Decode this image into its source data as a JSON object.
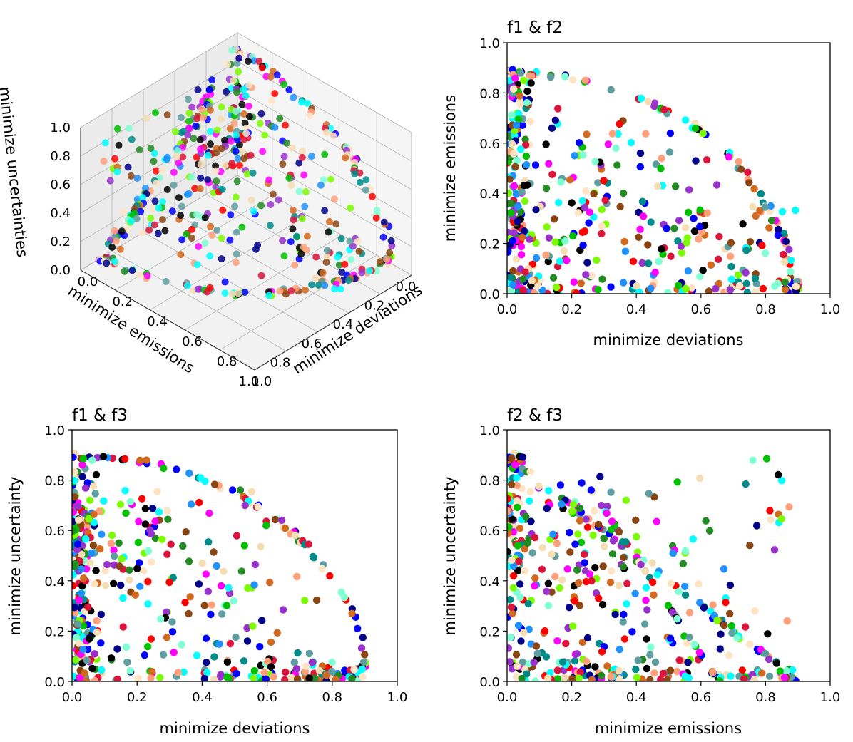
{
  "chart_data": [
    {
      "id": "scatter3d",
      "type": "scatter",
      "title": "",
      "xlabel": "minimize deviations",
      "ylabel": "minimize emissions",
      "zlabel": "minimize uncertainties",
      "xlim": [
        0.0,
        1.0
      ],
      "ylim": [
        0.0,
        1.0
      ],
      "zlim": [
        0.0,
        1.0
      ],
      "xticks": [
        "0.0",
        "0.2",
        "0.4",
        "0.6",
        "0.8",
        "1.0"
      ],
      "yticks": [
        "0.0",
        "0.2",
        "0.4",
        "0.6",
        "0.8",
        "1.0"
      ],
      "zticks": [
        "0.0",
        "0.2",
        "0.4",
        "0.6",
        "0.8",
        "1.0"
      ],
      "grid": true
    },
    {
      "id": "f1f2",
      "type": "scatter",
      "title": "f1 & f2",
      "xlabel": "minimize deviations",
      "ylabel": "minimize emissions",
      "xlim": [
        0.0,
        1.0
      ],
      "ylim": [
        0.0,
        1.0
      ],
      "xticks": [
        "0.0",
        "0.2",
        "0.4",
        "0.6",
        "0.8",
        "1.0"
      ],
      "yticks": [
        "0.0",
        "0.2",
        "0.4",
        "0.6",
        "0.8",
        "1.0"
      ],
      "grid": false
    },
    {
      "id": "f1f3",
      "type": "scatter",
      "title": "f1 & f3",
      "xlabel": "minimize deviations",
      "ylabel": "minimize uncertainty",
      "xlim": [
        0.0,
        1.0
      ],
      "ylim": [
        0.0,
        1.0
      ],
      "xticks": [
        "0.0",
        "0.2",
        "0.4",
        "0.6",
        "0.8",
        "1.0"
      ],
      "yticks": [
        "0.0",
        "0.2",
        "0.4",
        "0.6",
        "0.8",
        "1.0"
      ],
      "grid": false
    },
    {
      "id": "f2f3",
      "type": "scatter",
      "title": "f2 & f3",
      "xlabel": "minimize emissions",
      "ylabel": "minimize uncertainty",
      "xlim": [
        0.0,
        1.0
      ],
      "ylim": [
        0.0,
        1.0
      ],
      "xticks": [
        "0.0",
        "0.2",
        "0.4",
        "0.6",
        "0.8",
        "1.0"
      ],
      "yticks": [
        "0.0",
        "0.2",
        "0.4",
        "0.6",
        "0.8",
        "1.0"
      ],
      "grid": false
    }
  ],
  "point_colors": [
    "#0000ff",
    "#ff0000",
    "#00c000",
    "#00ffff",
    "#ff00ff",
    "#9932cc",
    "#000000",
    "#f5deb3",
    "#ffe4c4",
    "#008b8b",
    "#d2691e",
    "#7cfc00",
    "#00008b",
    "#5f9ea0",
    "#ffa07a",
    "#dc143c",
    "#7fffd4",
    "#1e90ff",
    "#8b4513",
    "#228b22"
  ],
  "front_description_values": {
    "f1f2_arc_radius": 0.88,
    "f1f3_arc_radius": 0.9,
    "f2f3_line_sum": 0.9,
    "f2f3_inner_line_sum": 0.65
  }
}
